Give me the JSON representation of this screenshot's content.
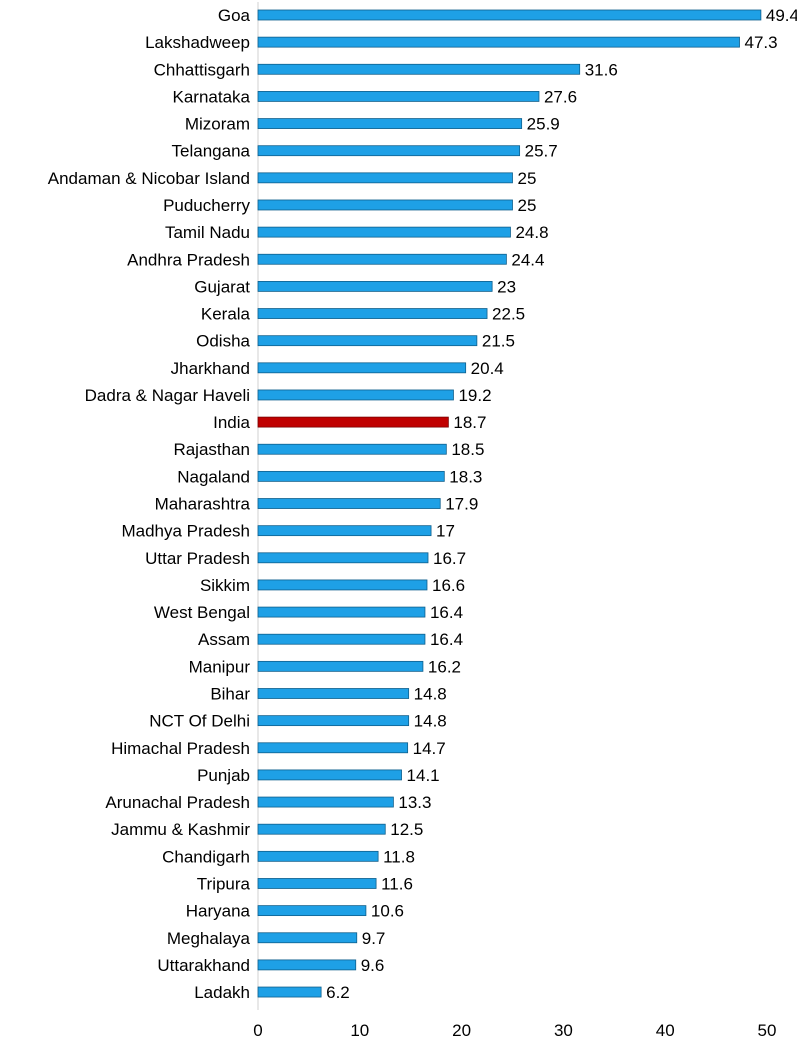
{
  "chart_data": {
    "type": "bar",
    "orientation": "horizontal",
    "title": "",
    "xlabel": "",
    "ylabel": "",
    "xlim": [
      0,
      50
    ],
    "xticks": [
      0,
      10,
      20,
      30,
      40,
      50
    ],
    "grid": false,
    "bar_color": "#1EA0E6",
    "highlight_color": "#C00000",
    "highlight_category": "India",
    "categories": [
      "Goa",
      "Lakshadweep",
      "Chhattisgarh",
      "Karnataka",
      "Mizoram",
      "Telangana",
      "Andaman & Nicobar Island",
      "Puducherry",
      "Tamil Nadu",
      "Andhra Pradesh",
      "Gujarat",
      "Kerala",
      "Odisha",
      "Jharkhand",
      "Dadra & Nagar Haveli",
      "India",
      "Rajasthan",
      "Nagaland",
      "Maharashtra",
      "Madhya Pradesh",
      "Uttar Pradesh",
      "Sikkim",
      "West Bengal",
      "Assam",
      "Manipur",
      "Bihar",
      "NCT Of Delhi",
      "Himachal Pradesh",
      "Punjab",
      "Arunachal Pradesh",
      "Jammu & Kashmir",
      "Chandigarh",
      "Tripura",
      "Haryana",
      "Meghalaya",
      "Uttarakhand",
      "Ladakh"
    ],
    "values": [
      49.4,
      47.3,
      31.6,
      27.6,
      25.9,
      25.7,
      25,
      25,
      24.8,
      24.4,
      23,
      22.5,
      21.5,
      20.4,
      19.2,
      18.7,
      18.5,
      18.3,
      17.9,
      17,
      16.7,
      16.6,
      16.4,
      16.4,
      16.2,
      14.8,
      14.8,
      14.7,
      14.1,
      13.3,
      12.5,
      11.8,
      11.6,
      10.6,
      9.7,
      9.6,
      6.2
    ],
    "value_labels": [
      "49.4",
      "47.3",
      "31.6",
      "27.6",
      "25.9",
      "25.7",
      "25",
      "25",
      "24.8",
      "24.4",
      "23",
      "22.5",
      "21.5",
      "20.4",
      "19.2",
      "18.7",
      "18.5",
      "18.3",
      "17.9",
      "17",
      "16.7",
      "16.6",
      "16.4",
      "16.4",
      "16.2",
      "14.8",
      "14.8",
      "14.7",
      "14.1",
      "13.3",
      "12.5",
      "11.8",
      "11.6",
      "10.6",
      "9.7",
      "9.6",
      "6.2"
    ]
  }
}
